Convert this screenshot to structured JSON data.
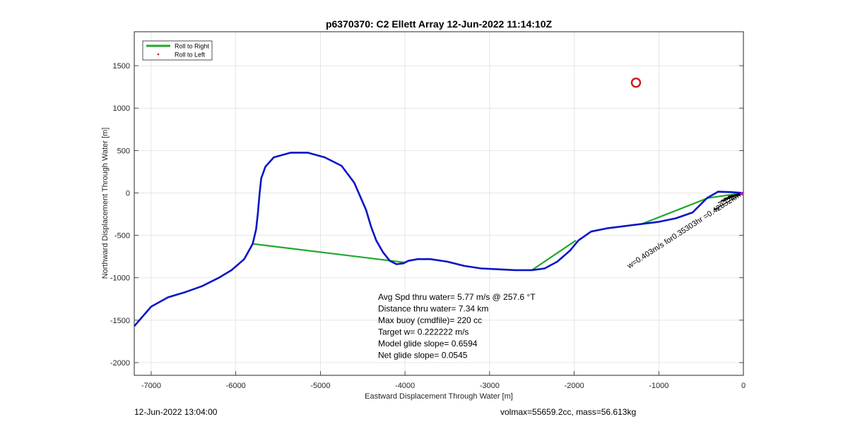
{
  "chart_data": {
    "type": "line",
    "title": "p6370370: C2 Ellett Array 12-Jun-2022 11:14:10Z",
    "xlabel": "Eastward Displacement Through Water [m]",
    "ylabel": "Northward Displacement Through Water [m]",
    "xlim": [
      -7200,
      0
    ],
    "ylim": [
      -2150,
      1900
    ],
    "xticks": [
      -7000,
      -6000,
      -5000,
      -4000,
      -3000,
      -2000,
      -1000,
      0
    ],
    "yticks": [
      -2000,
      -1500,
      -1000,
      -500,
      0,
      500,
      1000,
      1500
    ],
    "grid": true,
    "legend": {
      "placement": "top-left",
      "entries": [
        {
          "label": "Roll to Right",
          "color": "#1fa82a",
          "marker": "line"
        },
        {
          "label": "Roll to Left",
          "color": "#e02020",
          "marker": "dot"
        }
      ]
    },
    "series": [
      {
        "color": "#0b13c8",
        "x": [
          -7200,
          -7000,
          -6800,
          -6600,
          -6400,
          -6200,
          -6050,
          -5900,
          -5800,
          -5760,
          -5740,
          -5720,
          -5700,
          -5650,
          -5550,
          -5350,
          -5150,
          -4950,
          -4750,
          -4600,
          -4460,
          -4400,
          -4340,
          -4260,
          -4180,
          -4100,
          -4020,
          -3960,
          -3850,
          -3700,
          -3500,
          -3300,
          -3100,
          -2900,
          -2700,
          -2500,
          -2350,
          -2200,
          -2050,
          -1950,
          -1800,
          -1600,
          -1400,
          -1200,
          -1000,
          -800,
          -600,
          -430,
          -300,
          -150,
          0
        ],
        "y": [
          -1570,
          -1340,
          -1230,
          -1170,
          -1100,
          -1000,
          -910,
          -780,
          -600,
          -430,
          -250,
          -20,
          170,
          310,
          420,
          475,
          475,
          420,
          320,
          120,
          -200,
          -400,
          -560,
          -700,
          -800,
          -840,
          -830,
          -800,
          -780,
          -780,
          -810,
          -860,
          -890,
          -900,
          -910,
          -910,
          -890,
          -810,
          -680,
          -560,
          -455,
          -415,
          -390,
          -365,
          -340,
          -300,
          -230,
          -60,
          15,
          10,
          0
        ]
      },
      {
        "color": "#1fa82a",
        "segments": [
          {
            "x": [
              -5800,
              -4000
            ],
            "y": [
              -600,
              -820
            ]
          },
          {
            "x": [
              -2500,
              -1980
            ],
            "y": [
              -910,
              -560
            ]
          },
          {
            "x": [
              -1200,
              -420
            ],
            "y": [
              -365,
              -60
            ]
          },
          {
            "x": [
              -420,
              0
            ],
            "y": [
              -60,
              0
            ]
          }
        ]
      }
    ],
    "markers": [
      {
        "label": "target-circle",
        "x": -1270,
        "y": 1300,
        "color": "#cc1a1a"
      },
      {
        "label": "current-dot",
        "x": 0,
        "y": 0,
        "color": "#c01ac0"
      }
    ],
    "annotations": {
      "rotated_text": "w=0.403m/s for0.35303hr =0.42832km",
      "stats": [
        "Avg Spd thru water=  5.77 m/s @ 257.6 °T",
        "Distance thru water=  7.34 km",
        "Max buoy (cmdfile)= 220 cc",
        "Target w= 0.222222 m/s",
        "Model glide slope= 0.6594",
        "Net glide slope= 0.0545"
      ],
      "footer_left": "12-Jun-2022 13:04:00",
      "footer_right": "volmax=55659.2cc, mass=56.613kg"
    }
  }
}
